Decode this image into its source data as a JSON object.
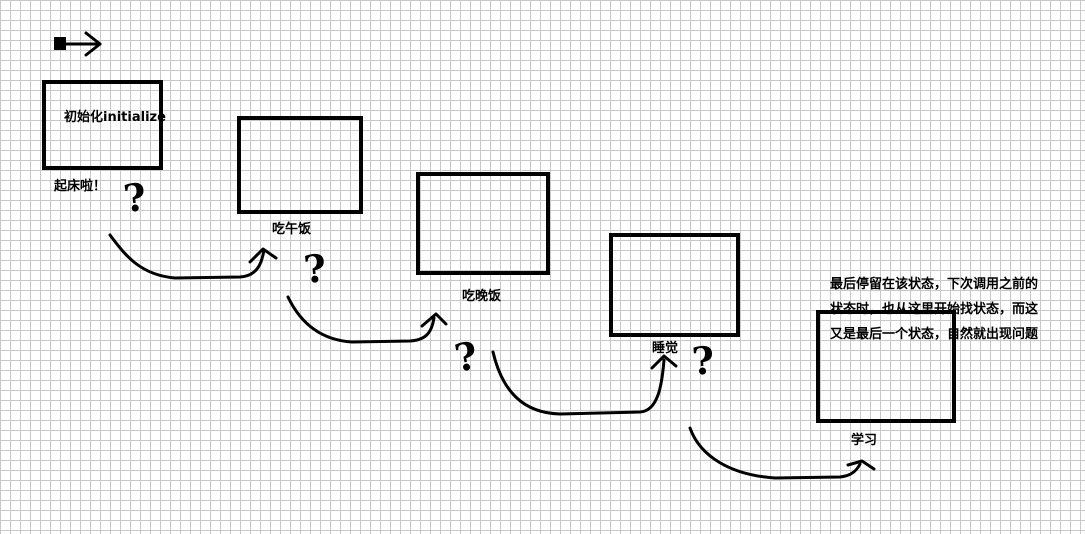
{
  "states": {
    "initial": {
      "label": "初始化initialize",
      "caption": "起床啦！"
    },
    "lunch": {
      "label": "吃午饭"
    },
    "dinner": {
      "label": "吃晚饭"
    },
    "sleep": {
      "label": "睡觉"
    },
    "study": {
      "label": "学习"
    }
  },
  "transition_glyph": "?",
  "note": {
    "lines": [
      "最后停留在该状态，下次调用之前的",
      "状态时，也从这里开始找状态，而这",
      "又是最后一个状态，自然就出现问题"
    ]
  }
}
